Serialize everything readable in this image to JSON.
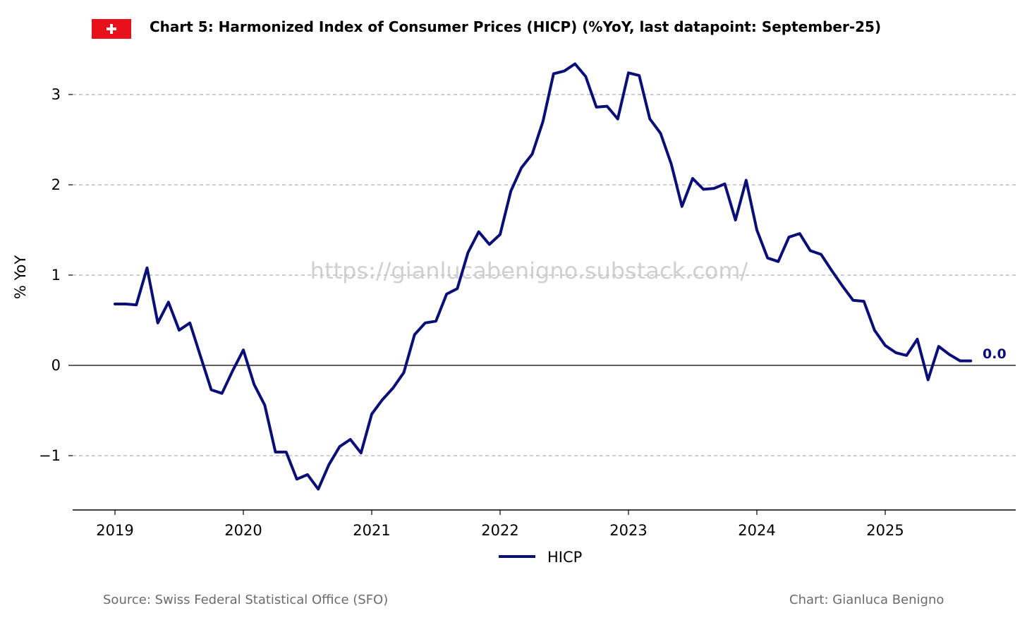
{
  "header": {
    "title": "Chart 5: Harmonized Index of Consumer Prices (HICP) (%YoY, last datapoint: September-25)",
    "flag_color": "#e8101a"
  },
  "footer": {
    "source": "Source: Swiss Federal Statistical Office (SFO)",
    "credit": "Chart: Gianluca Benigno"
  },
  "watermark": "https://gianlucabenigno.substack.com/",
  "chart_data": {
    "type": "line",
    "title": "Chart 5: Harmonized Index of Consumer Prices (HICP) (%YoY, last datapoint: September-25)",
    "ylabel": "% YoY",
    "xlabel": "",
    "ylim": [
      -1.6,
      3.4
    ],
    "yticks": [
      -1,
      0,
      1,
      2,
      3
    ],
    "ytick_labels": [
      "−1",
      "0",
      "1",
      "2",
      "3"
    ],
    "xlim": [
      "2018-09",
      "2025-12"
    ],
    "xticks": [
      "2019-01",
      "2020-01",
      "2021-01",
      "2022-01",
      "2023-01",
      "2024-01",
      "2025-01"
    ],
    "xtick_labels": [
      "2019",
      "2020",
      "2021",
      "2022",
      "2023",
      "2024",
      "2025"
    ],
    "grid": "horizontal dashed",
    "zero_line": true,
    "legend_position": "bottom-center",
    "end_label": "0.0",
    "line_color": "#0a0f78",
    "series": [
      {
        "name": "HICP",
        "x": [
          "2019-01",
          "2019-02",
          "2019-03",
          "2019-04",
          "2019-05",
          "2019-06",
          "2019-07",
          "2019-08",
          "2019-09",
          "2019-10",
          "2019-11",
          "2019-12",
          "2020-01",
          "2020-02",
          "2020-03",
          "2020-04",
          "2020-05",
          "2020-06",
          "2020-07",
          "2020-08",
          "2020-09",
          "2020-10",
          "2020-11",
          "2020-12",
          "2021-01",
          "2021-02",
          "2021-03",
          "2021-04",
          "2021-05",
          "2021-06",
          "2021-07",
          "2021-08",
          "2021-09",
          "2021-10",
          "2021-11",
          "2021-12",
          "2022-01",
          "2022-02",
          "2022-03",
          "2022-04",
          "2022-05",
          "2022-06",
          "2022-07",
          "2022-08",
          "2022-09",
          "2022-10",
          "2022-11",
          "2022-12",
          "2023-01",
          "2023-02",
          "2023-03",
          "2023-04",
          "2023-05",
          "2023-06",
          "2023-07",
          "2023-08",
          "2023-09",
          "2023-10",
          "2023-11",
          "2023-12",
          "2024-01",
          "2024-02",
          "2024-03",
          "2024-04",
          "2024-05",
          "2024-06",
          "2024-07",
          "2024-08",
          "2024-09",
          "2024-10",
          "2024-11",
          "2024-12",
          "2025-01",
          "2025-02",
          "2025-03",
          "2025-04",
          "2025-05",
          "2025-06",
          "2025-07",
          "2025-08",
          "2025-09"
        ],
        "values": [
          0.68,
          0.68,
          0.67,
          1.08,
          0.47,
          0.7,
          0.39,
          0.47,
          0.1,
          -0.27,
          -0.31,
          -0.06,
          0.17,
          -0.21,
          -0.44,
          -0.96,
          -0.96,
          -1.26,
          -1.21,
          -1.37,
          -1.1,
          -0.9,
          -0.82,
          -0.97,
          -0.54,
          -0.38,
          -0.25,
          -0.08,
          0.34,
          0.47,
          0.49,
          0.79,
          0.85,
          1.25,
          1.48,
          1.34,
          1.45,
          1.93,
          2.19,
          2.34,
          2.7,
          3.23,
          3.26,
          3.34,
          3.2,
          2.86,
          2.87,
          2.73,
          3.24,
          3.21,
          2.73,
          2.57,
          2.23,
          1.76,
          2.07,
          1.95,
          1.96,
          2.01,
          1.61,
          2.05,
          1.5,
          1.19,
          1.15,
          1.42,
          1.46,
          1.27,
          1.23,
          1.05,
          0.88,
          0.72,
          0.71,
          0.39,
          0.22,
          0.14,
          0.11,
          0.29,
          -0.16,
          0.21,
          0.12,
          0.05,
          0.05
        ]
      }
    ]
  }
}
